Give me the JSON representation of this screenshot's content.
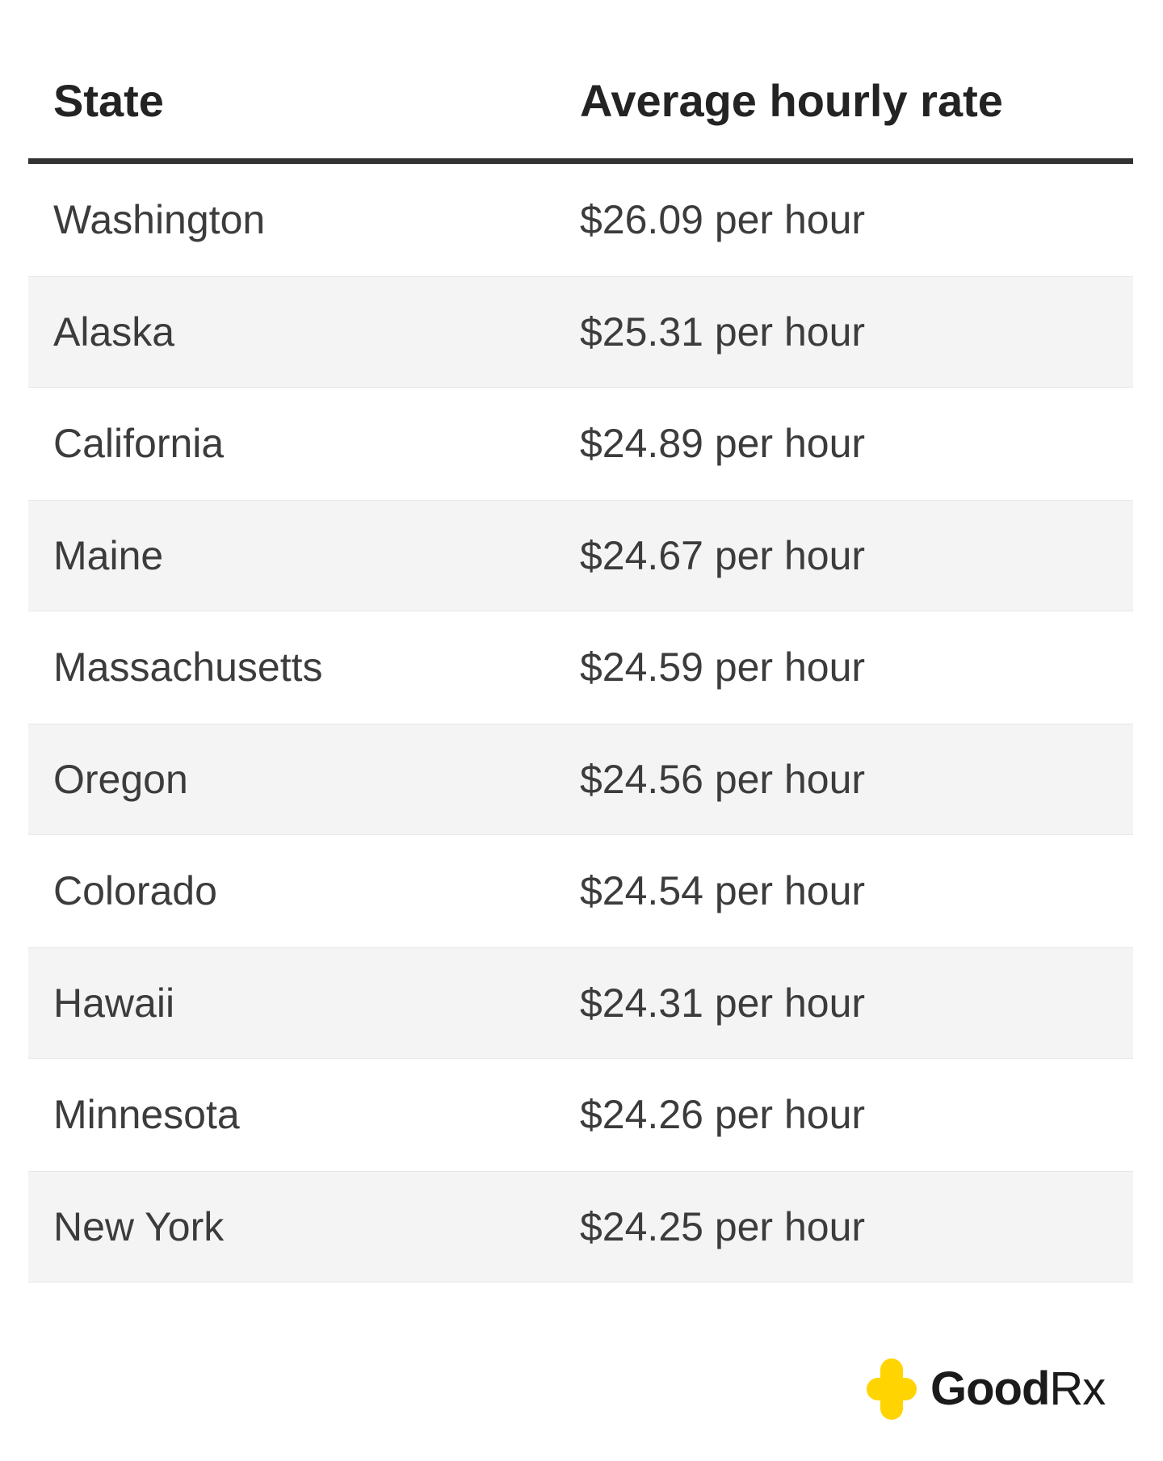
{
  "table": {
    "header": {
      "state_label": "State",
      "rate_label": "Average hourly rate"
    },
    "rows": [
      {
        "state": "Washington",
        "rate": "$26.09 per hour"
      },
      {
        "state": "Alaska",
        "rate": "$25.31 per hour"
      },
      {
        "state": "California",
        "rate": "$24.89 per hour"
      },
      {
        "state": "Maine",
        "rate": "$24.67 per hour"
      },
      {
        "state": "Massachusetts",
        "rate": "$24.59 per hour"
      },
      {
        "state": "Oregon",
        "rate": "$24.56 per hour"
      },
      {
        "state": "Colorado",
        "rate": "$24.54 per hour"
      },
      {
        "state": "Hawaii",
        "rate": "$24.31 per hour"
      },
      {
        "state": "Minnesota",
        "rate": "$24.26 per hour"
      },
      {
        "state": "New York",
        "rate": "$24.25 per hour"
      }
    ]
  },
  "chart_data": {
    "type": "table",
    "columns": [
      "State",
      "Average hourly rate"
    ],
    "rows": [
      [
        "Washington",
        "$26.09 per hour"
      ],
      [
        "Alaska",
        "$25.31 per hour"
      ],
      [
        "California",
        "$24.89 per hour"
      ],
      [
        "Maine",
        "$24.67 per hour"
      ],
      [
        "Massachusetts",
        "$24.59 per hour"
      ],
      [
        "Oregon",
        "$24.56 per hour"
      ],
      [
        "Colorado",
        "$24.54 per hour"
      ],
      [
        "Hawaii",
        "$24.31 per hour"
      ],
      [
        "Minnesota",
        "$24.26 per hour"
      ],
      [
        "New York",
        "$24.25 per hour"
      ]
    ],
    "values_numeric": [
      26.09,
      25.31,
      24.89,
      24.67,
      24.59,
      24.56,
      24.54,
      24.31,
      24.26,
      24.25
    ],
    "unit": "USD per hour",
    "layout": "zebra-striped two-column table, thick dark rule under header"
  },
  "branding": {
    "logo_bold": "Good",
    "logo_light": "Rx"
  },
  "colors": {
    "header-text": "#232323",
    "row-text": "#3c3c3c",
    "rule": "#323232",
    "stripe": "#f4f4f4",
    "stripe-border": "#e7e7e7",
    "logo-yellow": "#FFD400",
    "logo-text": "#1b1b1b"
  }
}
